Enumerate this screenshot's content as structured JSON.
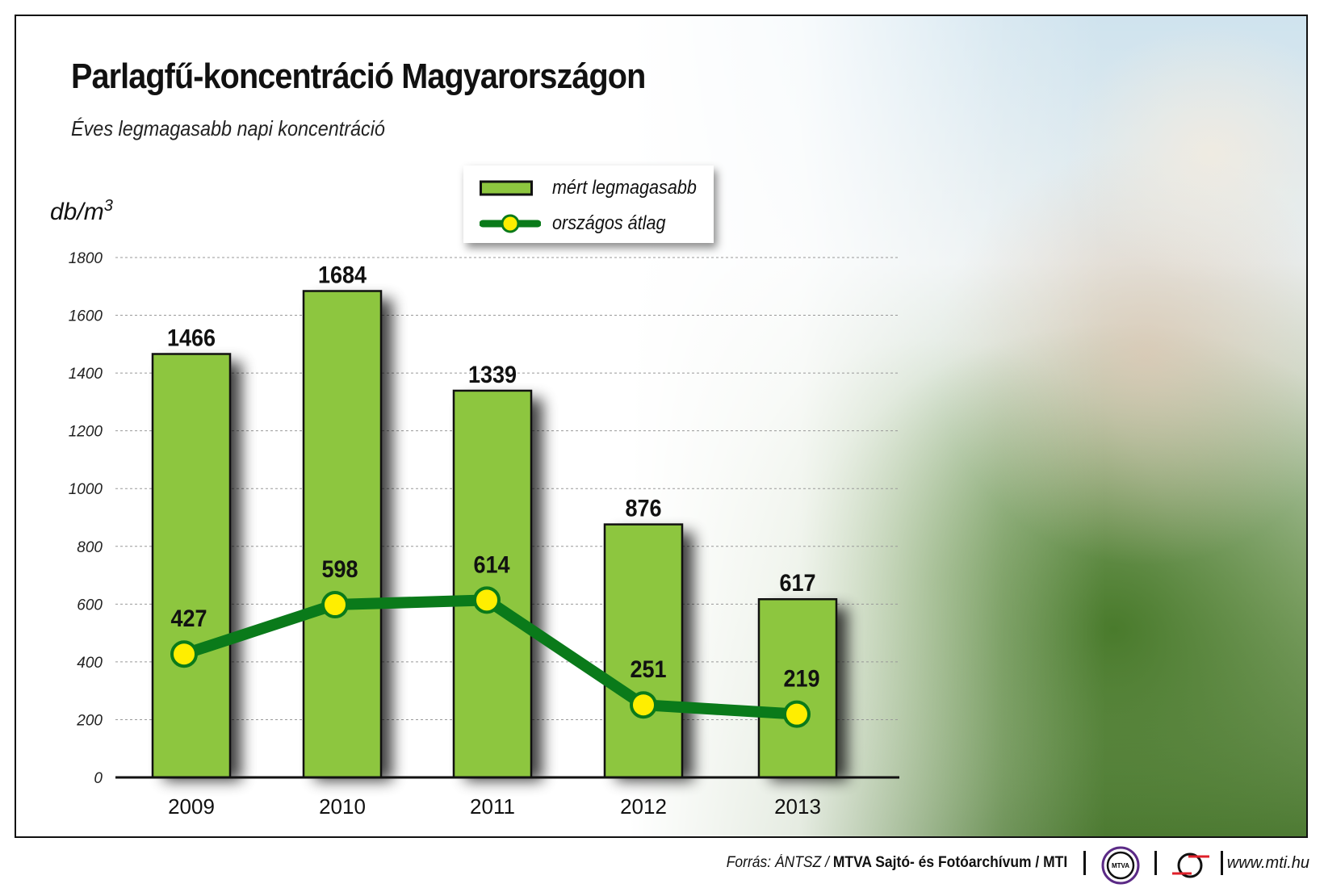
{
  "title": "Parlagfű-koncentráció Magyarországon",
  "subtitle": "Éves legmagasabb napi koncentráció",
  "colors": {
    "bar": "#8dc63f",
    "line": "#0a7a1a",
    "marker": "#ffee00"
  },
  "footer": {
    "source_prefix": "Forrás: ÁNTSZ / ",
    "source_bold": "MTVA Sajtó- és Fotóarchívum / MTI",
    "logo1": "MTVA",
    "url": "www.mti.hu"
  },
  "chart_data": {
    "type": "bar",
    "title": "Parlagfű-koncentráció Magyarországon",
    "subtitle": "Éves legmagasabb napi koncentráció",
    "ylabel": "db/m",
    "ylabel_sup": "3",
    "ylim": [
      0,
      1800
    ],
    "yticks": [
      "0",
      "200",
      "400",
      "600",
      "800",
      "1000",
      "1200",
      "1400",
      "1600",
      "1800"
    ],
    "grid": true,
    "legend_position": "top-center",
    "categories": [
      "2009",
      "2010",
      "2011",
      "2012",
      "2013"
    ],
    "series": [
      {
        "name": "mért legmagasabb",
        "type": "bar",
        "values": [
          1466,
          1684,
          1339,
          876,
          617
        ]
      },
      {
        "name": "országos átlag",
        "type": "line",
        "values": [
          427,
          598,
          614,
          251,
          219
        ]
      }
    ]
  }
}
